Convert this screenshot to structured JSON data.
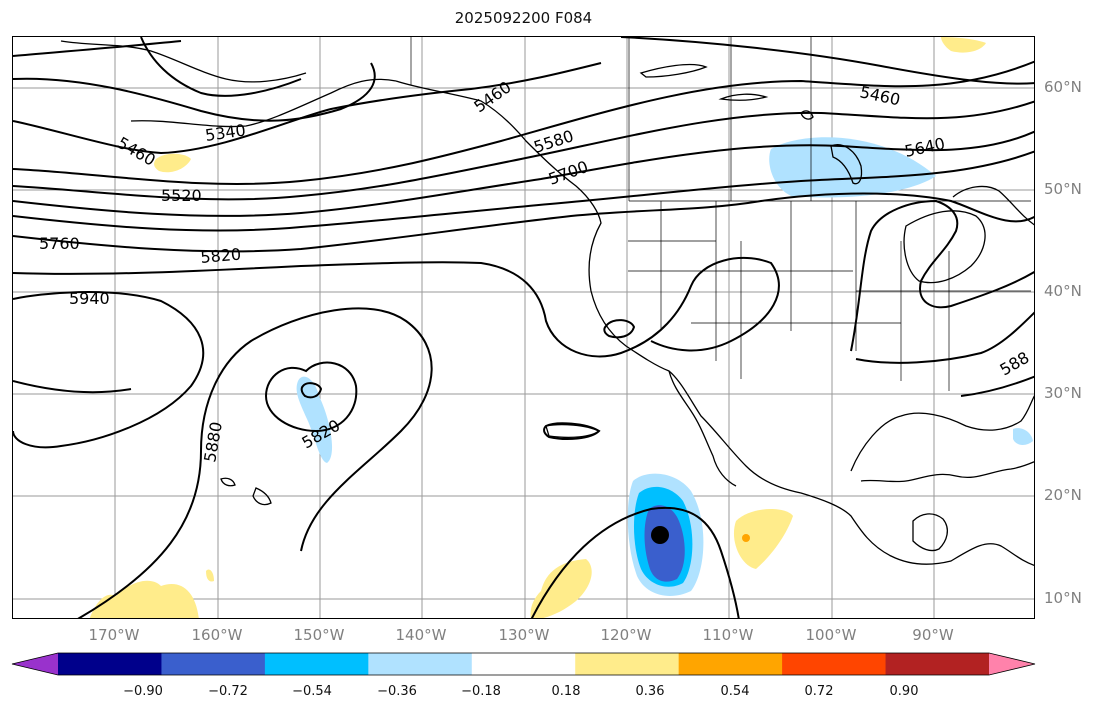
{
  "title": "2025092200 F084",
  "map": {
    "contour_labels": [
      "5460",
      "5340",
      "5460",
      "5520",
      "5580",
      "5700",
      "5460",
      "5640",
      "5760",
      "5820",
      "5940",
      "5820",
      "5880",
      "588"
    ],
    "lat_labels": [
      "60°N",
      "50°N",
      "40°N",
      "30°N",
      "20°N",
      "10°N"
    ],
    "lon_labels": [
      "170°W",
      "160°W",
      "150°W",
      "140°W",
      "130°W",
      "120°W",
      "110°W",
      "100°W",
      "90°W"
    ]
  },
  "colorbar": {
    "ticks": [
      "−0.90",
      "−0.72",
      "−0.54",
      "−0.36",
      "−0.18",
      "0.18",
      "0.36",
      "0.54",
      "0.72",
      "0.90"
    ],
    "colors": [
      "#9932cc",
      "#00008b",
      "#3a5fcd",
      "#00bfff",
      "#b0e2ff",
      "#ffffff",
      "#ffec8b",
      "#ffa500",
      "#ff4500",
      "#b22222",
      "#ff82ab"
    ]
  }
}
